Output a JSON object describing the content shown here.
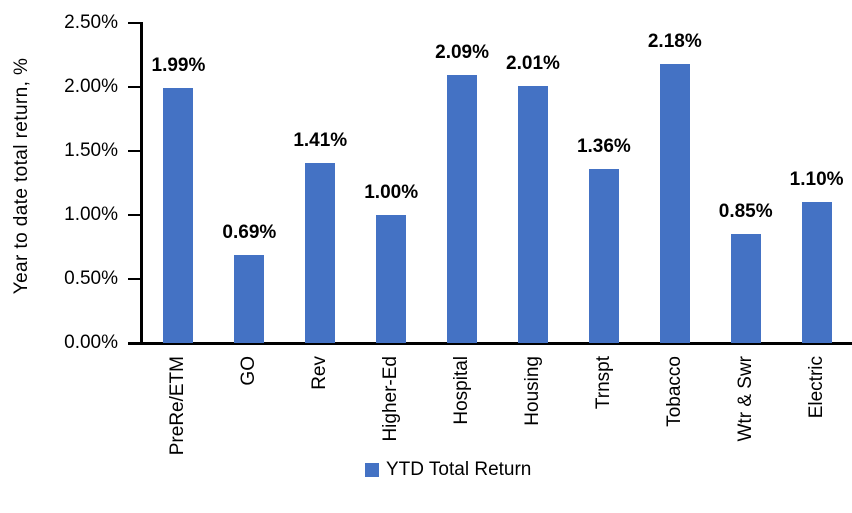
{
  "chart_data": {
    "type": "bar",
    "title": "",
    "ylabel": "Year to date total return, %",
    "xlabel": "",
    "ylim": [
      0,
      2.5
    ],
    "grid": false,
    "bar_color": "#4472C4",
    "categories": [
      "PreRe/ETM",
      "GO",
      "Rev",
      "Higher-Ed",
      "Hospital",
      "Housing",
      "Trnspt",
      "Tobacco",
      "Wtr & Swr",
      "Electric"
    ],
    "values": [
      1.99,
      0.69,
      1.41,
      1.0,
      2.09,
      2.01,
      1.36,
      2.18,
      0.85,
      1.1
    ],
    "data_labels": [
      "1.99%",
      "0.69%",
      "1.41%",
      "1.00%",
      "2.09%",
      "2.01%",
      "1.36%",
      "2.18%",
      "0.85%",
      "1.10%"
    ],
    "y_tick_values": [
      0,
      0.5,
      1.0,
      1.5,
      2.0,
      2.5
    ],
    "y_tick_labels": [
      "0.00%",
      "0.50%",
      "1.00%",
      "1.50%",
      "2.00%",
      "2.50%"
    ],
    "legend_position": "bottom-center",
    "legend": {
      "label": "YTD Total Return",
      "color": "#4472C4"
    }
  }
}
